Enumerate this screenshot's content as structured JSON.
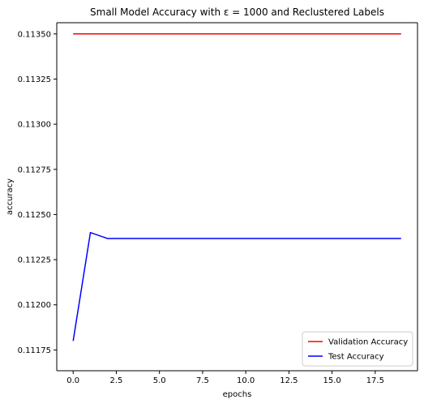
{
  "chart_data": {
    "type": "line",
    "title": "Small Model Accuracy with ε = 1000 and Reclustered Labels",
    "xlabel": "epochs",
    "ylabel": "accuracy",
    "xlim": [
      -0.95,
      19.95
    ],
    "ylim": [
      0.111635,
      0.113562
    ],
    "xticks": [
      0.0,
      2.5,
      5.0,
      7.5,
      10.0,
      12.5,
      15.0,
      17.5
    ],
    "xtick_labels": [
      "0.0",
      "2.5",
      "5.0",
      "7.5",
      "10.0",
      "12.5",
      "15.0",
      "17.5"
    ],
    "yticks": [
      0.11175,
      0.112,
      0.11225,
      0.1125,
      0.11275,
      0.113,
      0.11325,
      0.1135
    ],
    "ytick_labels": [
      "0.11175",
      "0.11200",
      "0.11225",
      "0.11250",
      "0.11275",
      "0.11300",
      "0.11325",
      "0.11350"
    ],
    "grid": false,
    "legend_position": "lower-right",
    "x": [
      0,
      1,
      2,
      3,
      4,
      5,
      6,
      7,
      8,
      9,
      10,
      11,
      12,
      13,
      14,
      15,
      16,
      17,
      18,
      19
    ],
    "series": [
      {
        "name": "Validation Accuracy",
        "color": "#ff0000",
        "values": [
          0.1135,
          0.1135,
          0.1135,
          0.1135,
          0.1135,
          0.1135,
          0.1135,
          0.1135,
          0.1135,
          0.1135,
          0.1135,
          0.1135,
          0.1135,
          0.1135,
          0.1135,
          0.1135,
          0.1135,
          0.1135,
          0.1135,
          0.1135
        ]
      },
      {
        "name": "Test Accuracy",
        "color": "#0000ff",
        "values": [
          0.1118,
          0.1124,
          0.112367,
          0.112367,
          0.112367,
          0.112367,
          0.112367,
          0.112367,
          0.112367,
          0.112367,
          0.112367,
          0.112367,
          0.112367,
          0.112367,
          0.112367,
          0.112367,
          0.112367,
          0.112367,
          0.112367,
          0.112367
        ]
      }
    ]
  }
}
